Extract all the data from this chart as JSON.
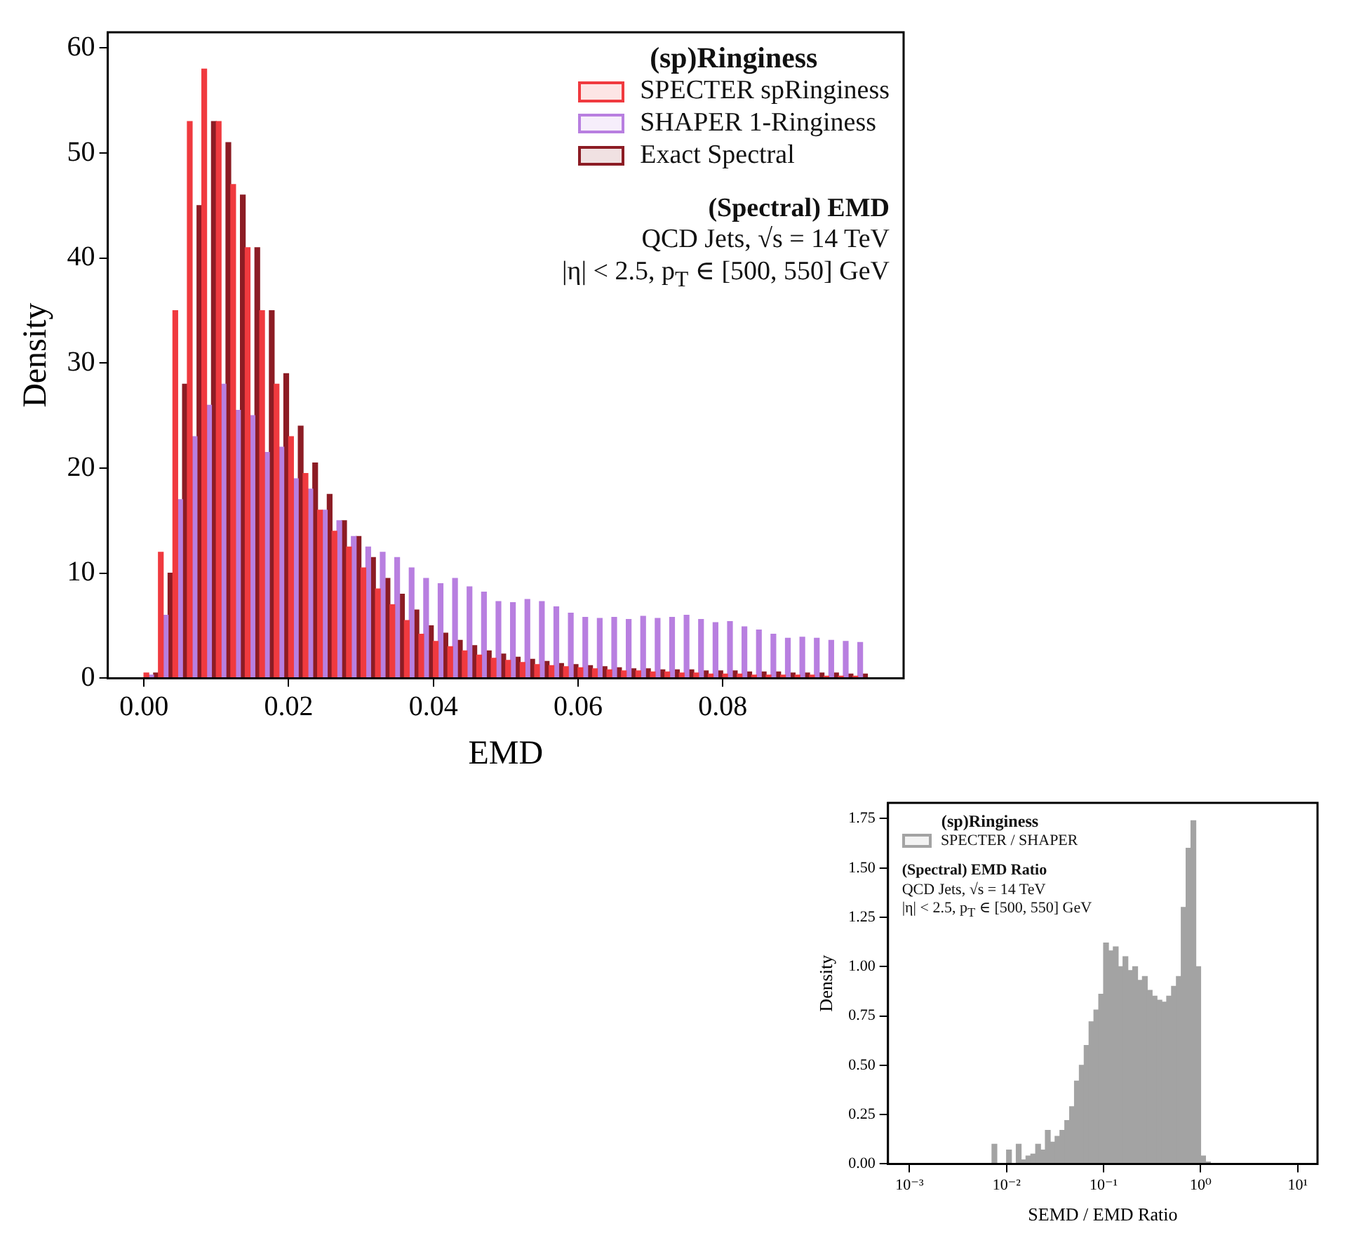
{
  "chart_data": [
    {
      "type": "histogram",
      "xlabel": "EMD",
      "ylabel": "Density",
      "legend_title": "(sp)Ringiness",
      "legend": "top right",
      "annotations": [
        "(Spectral) EMD",
        "QCD Jets, √s = 14 TeV",
        "|η| < 2.5, p$_{T}$ ∈ [500, 550] GeV"
      ],
      "bins": [
        0,
        0.002,
        0.004,
        0.006,
        0.008,
        0.01,
        0.012,
        0.014,
        0.016,
        0.018,
        0.02,
        0.022,
        0.024,
        0.026,
        0.028,
        0.03,
        0.032,
        0.034,
        0.036,
        0.038,
        0.04,
        0.042,
        0.044,
        0.046,
        0.048,
        0.05,
        0.052,
        0.054,
        0.056,
        0.058,
        0.06,
        0.062,
        0.064,
        0.066,
        0.068,
        0.07,
        0.072,
        0.074,
        0.076,
        0.078,
        0.08,
        0.082,
        0.084,
        0.086,
        0.088,
        0.09,
        0.092,
        0.094,
        0.096,
        0.098,
        0.1
      ],
      "series": [
        {
          "name": "SPECTER spRinginess",
          "color": "#f03a3f",
          "values": [
            0.5,
            12,
            35,
            53,
            58,
            53,
            47,
            41,
            35,
            28,
            23,
            19.5,
            16,
            14,
            12.5,
            10.5,
            8.5,
            7,
            5.5,
            4.2,
            3.5,
            3,
            2.6,
            2.2,
            1.9,
            1.7,
            1.5,
            1.3,
            1.2,
            1.1,
            1.0,
            0.9,
            0.8,
            0.7,
            0.7,
            0.6,
            0.6,
            0.5,
            0.5,
            0.4,
            0.4,
            0.4,
            0.3,
            0.3,
            0.3,
            0.3,
            0.3,
            0.2,
            0.2,
            0.2
          ]
        },
        {
          "name": "SHAPER 1-Ringiness",
          "color": "#b87fe0",
          "values": [
            0.3,
            6,
            17,
            23,
            26,
            28,
            25.5,
            25,
            21.5,
            22,
            19,
            18,
            16,
            15,
            13.5,
            12.5,
            12,
            11.5,
            10.5,
            9.5,
            9,
            9.5,
            8.7,
            8.2,
            7.3,
            7.2,
            7.5,
            7.3,
            6.8,
            6.2,
            5.8,
            5.7,
            5.8,
            5.6,
            5.9,
            5.7,
            5.8,
            6.0,
            5.6,
            5.3,
            5.4,
            4.9,
            4.6,
            4.2,
            3.8,
            3.9,
            3.8,
            3.6,
            3.5,
            3.4
          ]
        },
        {
          "name": "Exact Spectral",
          "color": "#8c1c24",
          "values": [
            0.5,
            10,
            28,
            45,
            53,
            51,
            46,
            41,
            35,
            29,
            24,
            20.5,
            17.5,
            15,
            13.5,
            11.5,
            9.5,
            8,
            6.5,
            5,
            4.3,
            3.6,
            3.1,
            2.6,
            2.3,
            2.0,
            1.8,
            1.6,
            1.4,
            1.3,
            1.2,
            1.1,
            1.0,
            0.9,
            0.9,
            0.8,
            0.8,
            0.8,
            0.7,
            0.7,
            0.7,
            0.6,
            0.6,
            0.6,
            0.5,
            0.5,
            0.5,
            0.5,
            0.4,
            0.4
          ]
        }
      ],
      "xlim": [
        -0.005,
        0.105
      ],
      "xticks": [
        {
          "value": 0,
          "label": "0.00"
        },
        {
          "value": 0.02,
          "label": "0.02"
        },
        {
          "value": 0.04,
          "label": "0.04"
        },
        {
          "value": 0.06,
          "label": "0.06"
        },
        {
          "value": 0.08,
          "label": "0.08"
        }
      ],
      "ylim": [
        0,
        61.5
      ],
      "yticks": [
        0,
        10,
        20,
        30,
        40,
        50,
        60
      ],
      "grid": false
    },
    {
      "type": "histogram",
      "xlabel": "SEMD / EMD Ratio",
      "ylabel": "Density",
      "legend_title": "(sp)Ringiness",
      "legend": "top left",
      "log": "x",
      "annotations": [
        "(Spectral) EMD Ratio",
        "QCD Jets, √s = 14 TeV",
        "|η| < 2.5, p$_{T}$ ∈ [500, 550] GeV"
      ],
      "bins": [
        0.007079,
        0.007943,
        0.008913,
        0.01,
        0.01122,
        0.01259,
        0.01413,
        0.01585,
        0.01778,
        0.01995,
        0.02239,
        0.02512,
        0.02818,
        0.03162,
        0.03548,
        0.03981,
        0.04467,
        0.05012,
        0.05623,
        0.0631,
        0.07079,
        0.07943,
        0.08913,
        0.1,
        0.1122,
        0.1259,
        0.1413,
        0.1585,
        0.1778,
        0.1995,
        0.2239,
        0.2512,
        0.2818,
        0.3162,
        0.3548,
        0.3981,
        0.4467,
        0.5012,
        0.5623,
        0.631,
        0.7079,
        0.7943,
        0.8913,
        1,
        1.122,
        1.259
      ],
      "series": [
        {
          "name": "SPECTER / SHAPER",
          "color": "#a3a3a3",
          "values": [
            0.1,
            0,
            0,
            0.07,
            0,
            0.1,
            0.02,
            0.04,
            0.05,
            0.1,
            0.07,
            0.17,
            0.11,
            0.14,
            0.17,
            0.22,
            0.29,
            0.42,
            0.5,
            0.6,
            0.72,
            0.78,
            0.86,
            1.12,
            1.08,
            1.1,
            1.0,
            1.05,
            0.98,
            1.0,
            0.93,
            0.95,
            0.88,
            0.85,
            0.83,
            0.82,
            0.85,
            0.9,
            0.95,
            1.3,
            1.6,
            1.74,
            1.0,
            0.04,
            0.01
          ]
        }
      ],
      "xlim": [
        0.0006,
        16
      ],
      "xticks": [
        {
          "value": 0.001,
          "label": "10⁻³"
        },
        {
          "value": 0.01,
          "label": "10⁻²"
        },
        {
          "value": 0.1,
          "label": "10⁻¹"
        },
        {
          "value": 1,
          "label": "10⁰"
        },
        {
          "value": 10,
          "label": "10¹"
        }
      ],
      "ylim": [
        0,
        1.83
      ],
      "yticks": [
        {
          "value": 0,
          "label": "0.00"
        },
        {
          "value": 0.25,
          "label": "0.25"
        },
        {
          "value": 0.5,
          "label": "0.50"
        },
        {
          "value": 0.75,
          "label": "0.75"
        },
        {
          "value": 1,
          "label": "1.00"
        },
        {
          "value": 1.25,
          "label": "1.25"
        },
        {
          "value": 1.5,
          "label": "1.50"
        },
        {
          "value": 1.75,
          "label": "1.75"
        }
      ],
      "grid": false
    }
  ]
}
